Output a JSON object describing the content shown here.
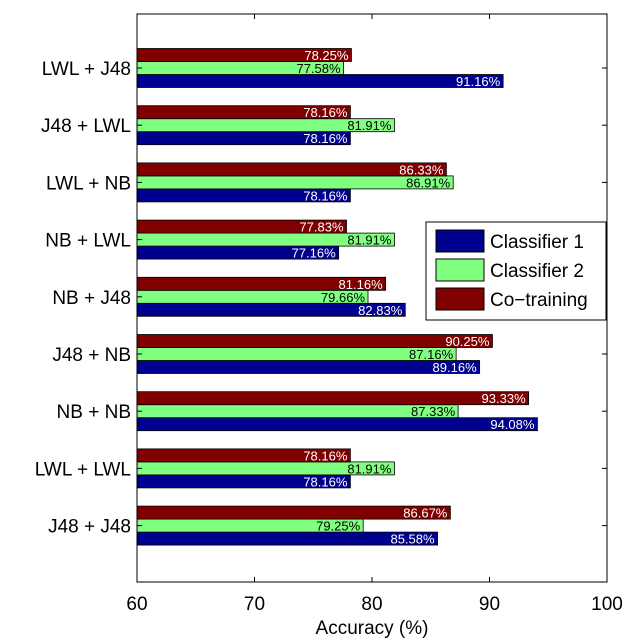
{
  "chart_data": {
    "type": "bar",
    "orientation": "horizontal",
    "categories": [
      "LWL + J48",
      "J48 + LWL",
      "LWL + NB",
      "NB + LWL",
      "NB + J48",
      "J48 + NB",
      "NB + NB",
      "LWL + LWL",
      "J48 + J48"
    ],
    "series": [
      {
        "name": "Classifier 1",
        "color": "#00008f",
        "values": [
          91.16,
          78.16,
          78.16,
          77.16,
          82.83,
          89.16,
          94.08,
          78.16,
          85.58
        ],
        "labels": [
          "91.16%",
          "78.16%",
          "78.16%",
          "77.16%",
          "82.83%",
          "89.16%",
          "94.08%",
          "78.16%",
          "85.58%"
        ],
        "label_color": "#ffffff"
      },
      {
        "name": "Classifier 2",
        "color": "#80ff80",
        "values": [
          77.58,
          81.91,
          86.91,
          81.91,
          79.66,
          87.16,
          87.33,
          81.91,
          79.25
        ],
        "labels": [
          "77.58%",
          "81.91%",
          "86.91%",
          "81.91%",
          "79.66%",
          "87.16%",
          "87.33%",
          "81.91%",
          "79.25%"
        ],
        "label_color": "#000000"
      },
      {
        "name": "Co−training",
        "color": "#800000",
        "values": [
          78.25,
          78.16,
          86.33,
          77.83,
          81.16,
          90.25,
          93.33,
          78.16,
          86.67
        ],
        "labels": [
          "78.25%",
          "78.16%",
          "86.33%",
          "77.83%",
          "81.16%",
          "90.25%",
          "93.33%",
          "78.16%",
          "86.67%"
        ],
        "label_color": "#ffffff"
      }
    ],
    "xlabel": "Accuracy (%)",
    "xlim": [
      60,
      100
    ],
    "xticks": [
      "60",
      "70",
      "80",
      "90",
      "100"
    ],
    "grid": false,
    "legend_position": "right"
  }
}
